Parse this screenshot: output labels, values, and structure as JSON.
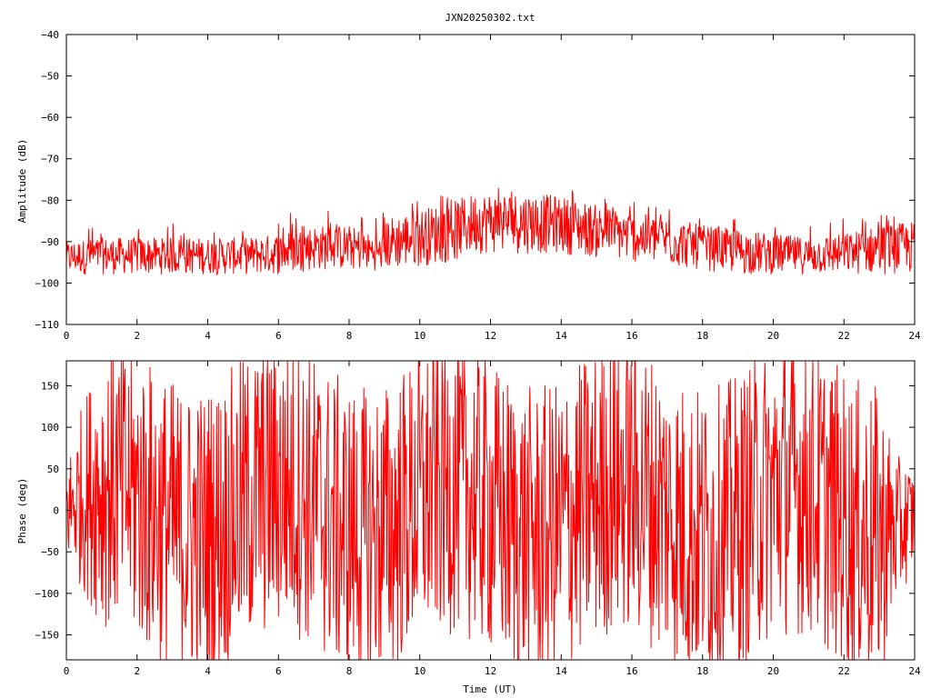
{
  "chart_data": {
    "type": "line",
    "title": "JXN20250302.txt",
    "xlabel": "Time (UT)",
    "colors": {
      "series": "#ff0000",
      "frame": "#000000",
      "background": "#ffffff"
    },
    "panels": [
      {
        "id": "amplitude",
        "ylabel": "Amplitude (dB)",
        "xlim": [
          0,
          24
        ],
        "ylim": [
          -110,
          -40
        ],
        "xticks": [
          0,
          2,
          4,
          6,
          8,
          10,
          12,
          14,
          16,
          18,
          20,
          22,
          24
        ],
        "yticks": [
          -110,
          -100,
          -90,
          -80,
          -70,
          -60,
          -50,
          -40
        ],
        "grid": false,
        "series": [
          {
            "style": "noisy-band",
            "x": [
              0,
              1,
              2,
              3,
              4,
              5,
              6,
              7,
              8,
              8.9,
              9.1,
              10,
              11,
              11.6,
              12,
              13,
              14,
              15,
              16,
              17,
              18,
              19,
              20,
              21,
              22,
              23,
              24
            ],
            "low": [
              -98,
              -98,
              -98,
              -98,
              -98,
              -98,
              -98,
              -97,
              -97,
              -97,
              -97,
              -96,
              -95,
              -93,
              -93,
              -93,
              -93,
              -94,
              -95,
              -96,
              -97,
              -98,
              -98,
              -98,
              -98,
              -98,
              -98
            ],
            "high": [
              -90,
              -89,
              -89,
              -89,
              -89,
              -89,
              -88,
              -86,
              -86,
              -89,
              -84,
              -82,
              -80,
              -78,
              -78,
              -78,
              -79,
              -81,
              -83,
              -84,
              -86,
              -87,
              -88,
              -89,
              -88,
              -86,
              -85
            ],
            "peak": [
              -83,
              -86,
              -86,
              -85,
              -86,
              -84,
              -83,
              -82,
              -81,
              -84,
              -80,
              -79,
              -78,
              -76,
              -75,
              -75,
              -77,
              -78,
              -80,
              -81,
              -83,
              -84,
              -86,
              -86,
              -84,
              -83,
              -80
            ]
          }
        ]
      },
      {
        "id": "phase",
        "ylabel": "Phase (deg)",
        "xlim": [
          0,
          24
        ],
        "ylim": [
          -180,
          180
        ],
        "xticks": [
          0,
          2,
          4,
          6,
          8,
          10,
          12,
          14,
          16,
          18,
          20,
          22,
          24
        ],
        "yticks": [
          -150,
          -100,
          -50,
          0,
          50,
          100,
          150
        ],
        "grid": false,
        "series": [
          {
            "style": "wrapping-phase",
            "wrap_range": [
              -180,
              180
            ],
            "x": [
              0,
              0.5,
              1,
              1.5,
              2,
              3,
              4,
              5,
              6,
              7,
              8,
              9,
              10,
              11,
              12,
              13,
              14,
              15,
              16,
              17,
              18,
              19,
              20,
              21,
              22,
              23,
              23.5,
              24
            ],
            "spread": [
              60,
              120,
              170,
              175,
              180,
              180,
              180,
              180,
              180,
              180,
              180,
              180,
              180,
              180,
              180,
              180,
              180,
              180,
              180,
              180,
              180,
              180,
              180,
              180,
              180,
              180,
              90,
              60
            ]
          }
        ]
      }
    ]
  }
}
